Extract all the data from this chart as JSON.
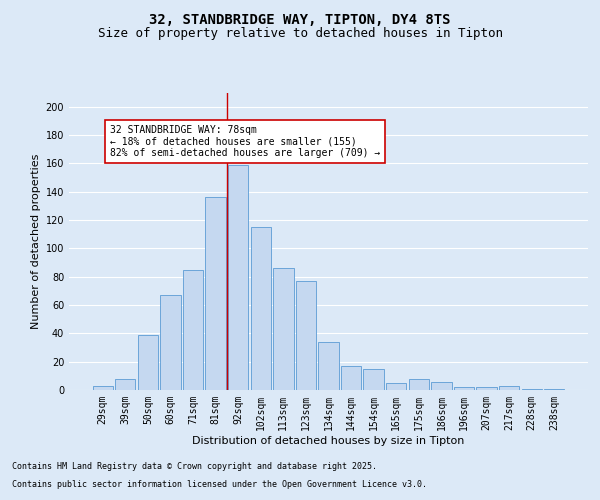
{
  "title_line1": "32, STANDBRIDGE WAY, TIPTON, DY4 8TS",
  "title_line2": "Size of property relative to detached houses in Tipton",
  "xlabel": "Distribution of detached houses by size in Tipton",
  "ylabel": "Number of detached properties",
  "categories": [
    "29sqm",
    "39sqm",
    "50sqm",
    "60sqm",
    "71sqm",
    "81sqm",
    "92sqm",
    "102sqm",
    "113sqm",
    "123sqm",
    "134sqm",
    "144sqm",
    "154sqm",
    "165sqm",
    "175sqm",
    "186sqm",
    "196sqm",
    "207sqm",
    "217sqm",
    "228sqm",
    "238sqm"
  ],
  "values": [
    3,
    8,
    39,
    67,
    85,
    136,
    159,
    115,
    86,
    77,
    34,
    17,
    15,
    5,
    8,
    6,
    2,
    2,
    3,
    1,
    1
  ],
  "bar_color": "#c5d8f0",
  "bar_edge_color": "#5b9bd5",
  "vline_color": "#cc0000",
  "vline_x": 5.5,
  "annotation_text": "32 STANDBRIDGE WAY: 78sqm\n← 18% of detached houses are smaller (155)\n82% of semi-detached houses are larger (709) →",
  "annotation_box_color": "#ffffff",
  "annotation_box_edge": "#cc0000",
  "ylim": [
    0,
    210
  ],
  "yticks": [
    0,
    20,
    40,
    60,
    80,
    100,
    120,
    140,
    160,
    180,
    200
  ],
  "footer_line1": "Contains HM Land Registry data © Crown copyright and database right 2025.",
  "footer_line2": "Contains public sector information licensed under the Open Government Licence v3.0.",
  "background_color": "#dce9f7",
  "plot_background": "#dce9f7",
  "grid_color": "#ffffff",
  "title_fontsize": 10,
  "subtitle_fontsize": 9,
  "tick_fontsize": 7,
  "ylabel_fontsize": 8,
  "xlabel_fontsize": 8,
  "footer_fontsize": 6,
  "annot_fontsize": 7
}
